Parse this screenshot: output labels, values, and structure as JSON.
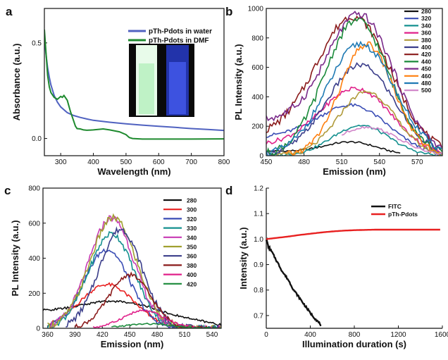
{
  "chart_data": [
    {
      "type": "line",
      "panel_label": "a",
      "xlabel": "Wavelength (nm)",
      "ylabel": "Absorbance (a.u.)",
      "xlim": [
        250,
        800
      ],
      "ylim": [
        -0.09,
        0.68
      ],
      "xticks": [
        300,
        400,
        500,
        600,
        700,
        800
      ],
      "yticks": [
        0.0,
        0.5
      ],
      "ytick_labels": [
        "0.0",
        "0.5"
      ],
      "legend_position": "top-right",
      "inset": "photo of two vials (green and blue fluorescence)",
      "colors": [
        "#5062c0",
        "#1e8a2e"
      ],
      "series": [
        {
          "name": "pTh-Pdots in water",
          "x": [
            250,
            255,
            260,
            265,
            270,
            280,
            290,
            300,
            320,
            340,
            360,
            380,
            400,
            450,
            500,
            550,
            600,
            650,
            700,
            750,
            800
          ],
          "y": [
            0.52,
            0.44,
            0.37,
            0.32,
            0.28,
            0.225,
            0.19,
            0.165,
            0.135,
            0.12,
            0.11,
            0.102,
            0.095,
            0.085,
            0.077,
            0.07,
            0.064,
            0.058,
            0.052,
            0.047,
            0.042
          ]
        },
        {
          "name": "pTh-Pdots in DMF",
          "x": [
            250,
            255,
            260,
            265,
            270,
            280,
            290,
            300,
            305,
            310,
            320,
            330,
            340,
            345,
            350,
            360,
            370,
            380,
            400,
            430,
            450,
            480,
            500,
            510,
            520,
            550,
            600,
            700,
            800
          ],
          "y": [
            0.57,
            0.45,
            0.33,
            0.27,
            0.24,
            0.215,
            0.205,
            0.22,
            0.215,
            0.225,
            0.2,
            0.14,
            0.09,
            0.065,
            0.052,
            0.05,
            0.045,
            0.043,
            0.045,
            0.05,
            0.045,
            0.035,
            0.02,
            0.005,
            0.0,
            -0.003,
            -0.003,
            -0.003,
            -0.002
          ]
        }
      ]
    },
    {
      "type": "line",
      "panel_label": "b",
      "xlabel": "Emission (nm)",
      "ylabel": "PL Intensity (a.u.)",
      "xlim": [
        450,
        590
      ],
      "ylim": [
        0,
        1000
      ],
      "xticks": [
        450,
        480,
        510,
        540,
        570
      ],
      "yticks": [
        0,
        200,
        400,
        600,
        800,
        1000
      ],
      "legend_position": "right",
      "legend_entries": [
        "280",
        "320",
        "340",
        "360",
        "380",
        "400",
        "420",
        "440",
        "450",
        "460",
        "480",
        "500"
      ],
      "colors": [
        "#111111",
        "#3a4db5",
        "#14908f",
        "#e0208a",
        "#b09a3a",
        "#3a3d8a",
        "#8a1a1a",
        "#1a8a3a",
        "#7a2a8a",
        "#ff7f0e",
        "#1f7ab4",
        "#d083c8"
      ],
      "series": [
        {
          "name": "280",
          "x0": 450,
          "x1": 557,
          "base": 30,
          "peak": 85,
          "center": 518,
          "width": 30
        },
        {
          "name": "320",
          "x0": 450,
          "x1": 590,
          "base": 120,
          "peak": 310,
          "center": 520,
          "width": 40
        },
        {
          "name": "340",
          "x0": 450,
          "x1": 590,
          "base": 0,
          "peak": 205,
          "center": 525,
          "width": 32
        },
        {
          "name": "360",
          "x0": 450,
          "x1": 590,
          "base": 70,
          "peak": 440,
          "center": 522,
          "width": 40
        },
        {
          "name": "380",
          "x0": 450,
          "x1": 590,
          "base": 0,
          "peak": 435,
          "center": 530,
          "width": 32
        },
        {
          "name": "400",
          "x0": 450,
          "x1": 590,
          "base": 0,
          "peak": 615,
          "center": 525,
          "width": 38
        },
        {
          "name": "420",
          "x0": 450,
          "x1": 590,
          "base": 120,
          "peak": 915,
          "center": 520,
          "width": 42
        },
        {
          "name": "440",
          "x0": 450,
          "x1": 590,
          "base": 0,
          "peak": 920,
          "center": 522,
          "width": 36
        },
        {
          "name": "450",
          "x0": 450,
          "x1": 590,
          "base": 230,
          "peak": 910,
          "center": 525,
          "width": 38
        },
        {
          "name": "460",
          "x0": 465,
          "x1": 590,
          "base": 0,
          "peak": 755,
          "center": 530,
          "width": 30
        },
        {
          "name": "480",
          "x0": 450,
          "x1": 590,
          "base": 0,
          "peak": 760,
          "center": 525,
          "width": 38
        },
        {
          "name": "500",
          "x0": 510,
          "x1": 590,
          "base": 0,
          "peak": 195,
          "center": 530,
          "width": 35
        }
      ]
    },
    {
      "type": "line",
      "panel_label": "c",
      "xlabel": "Emission (nm)",
      "ylabel": "PL Intensity (a.u.)",
      "xlim": [
        355,
        550
      ],
      "ylim": [
        0,
        800
      ],
      "xticks": [
        360,
        390,
        420,
        450,
        480,
        510,
        540
      ],
      "yticks": [
        0,
        200,
        400,
        600,
        800
      ],
      "legend_position": "right",
      "legend_entries": [
        "280",
        "300",
        "320",
        "330",
        "340",
        "350",
        "360",
        "380",
        "400",
        "420"
      ],
      "colors": [
        "#111111",
        "#e82020",
        "#3a4db5",
        "#14908f",
        "#c83ab4",
        "#a0a030",
        "#3a3d8a",
        "#8a1a1a",
        "#e0208a",
        "#1a8a3a"
      ],
      "series": [
        {
          "name": "280",
          "x0": 355,
          "x1": 550,
          "base": 0,
          "peak": 155,
          "center": 430,
          "width": 60,
          "offset": 0
        },
        {
          "name": "300",
          "x0": 360,
          "x1": 550,
          "base": 0,
          "peak": 250,
          "center": 425,
          "width": 42
        },
        {
          "name": "320",
          "x0": 360,
          "x1": 550,
          "base": 0,
          "peak": 450,
          "center": 425,
          "width": 35
        },
        {
          "name": "330",
          "x0": 360,
          "x1": 550,
          "base": 0,
          "peak": 540,
          "center": 430,
          "width": 35
        },
        {
          "name": "340",
          "x0": 360,
          "x1": 550,
          "base": 0,
          "peak": 630,
          "center": 430,
          "width": 35
        },
        {
          "name": "350",
          "x0": 360,
          "x1": 550,
          "base": 0,
          "peak": 630,
          "center": 432,
          "width": 36
        },
        {
          "name": "360",
          "x0": 380,
          "x1": 550,
          "base": 0,
          "peak": 565,
          "center": 440,
          "width": 33
        },
        {
          "name": "380",
          "x0": 390,
          "x1": 550,
          "base": 0,
          "peak": 305,
          "center": 450,
          "width": 32
        },
        {
          "name": "400",
          "x0": 410,
          "x1": 550,
          "base": 0,
          "peak": 100,
          "center": 465,
          "width": 32
        },
        {
          "name": "420",
          "x0": 430,
          "x1": 550,
          "base": 0,
          "peak": 25,
          "center": 470,
          "width": 35
        }
      ]
    },
    {
      "type": "line",
      "panel_label": "d",
      "xlabel": "Illumination duration (s)",
      "ylabel": "Intensity (a.u.)",
      "xlim": [
        0,
        1600
      ],
      "ylim": [
        0.65,
        1.2
      ],
      "xticks": [
        0,
        400,
        800,
        1200,
        1600
      ],
      "yticks": [
        0.7,
        0.8,
        0.9,
        1.0,
        1.1,
        1.2
      ],
      "ytick_labels": [
        "0.7",
        "0.8",
        "0.9",
        "1.0",
        "1.1",
        "1.2"
      ],
      "legend_position": "top-right",
      "colors": [
        "#111111",
        "#e82020"
      ],
      "series": [
        {
          "name": "FITC",
          "x": [
            0,
            20,
            50,
            100,
            150,
            200,
            250,
            300,
            350,
            400,
            450,
            500
          ],
          "y": [
            1.0,
            0.97,
            0.95,
            0.91,
            0.87,
            0.84,
            0.8,
            0.77,
            0.74,
            0.71,
            0.685,
            0.662
          ]
        },
        {
          "name": "pTh-Pdots",
          "x": [
            0,
            100,
            200,
            300,
            400,
            500,
            600,
            700,
            800,
            900,
            1000,
            1200,
            1400,
            1580
          ],
          "y": [
            1.0,
            1.005,
            1.01,
            1.016,
            1.021,
            1.026,
            1.03,
            1.033,
            1.035,
            1.036,
            1.037,
            1.037,
            1.037,
            1.037
          ]
        }
      ]
    }
  ]
}
